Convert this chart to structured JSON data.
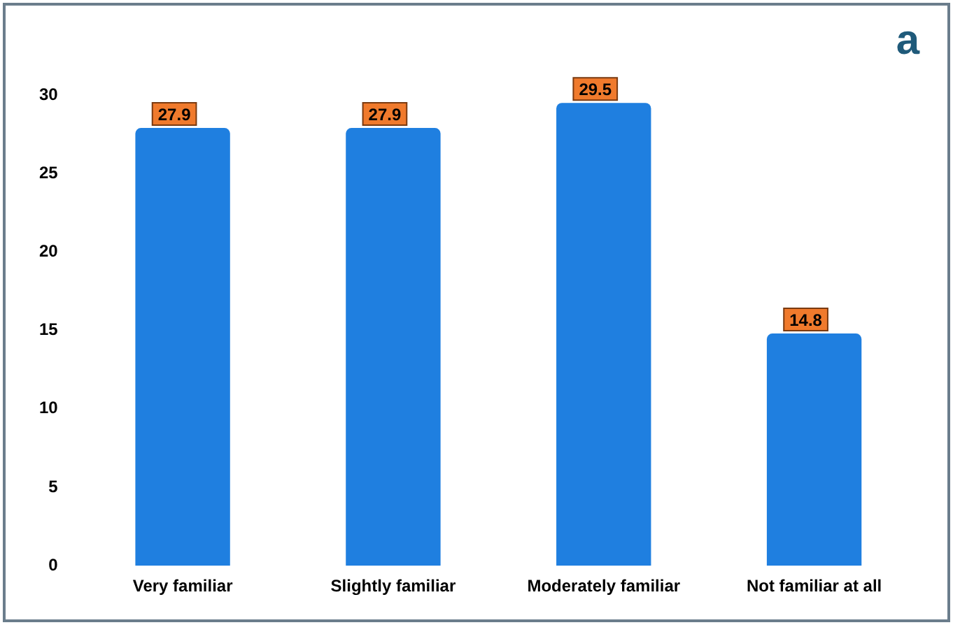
{
  "chart_data": {
    "type": "bar",
    "title": "a",
    "categories": [
      "Very familiar",
      "Slightly familiar",
      "Moderately familiar",
      "Not familiar at all"
    ],
    "values": [
      27.9,
      27.9,
      29.5,
      14.8
    ],
    "color": "#1f7fe0",
    "ylim": [
      0,
      30
    ],
    "yticks": [
      0,
      5,
      10,
      15,
      20,
      25,
      30
    ],
    "grid": false,
    "legend": false,
    "data_labels": true
  }
}
